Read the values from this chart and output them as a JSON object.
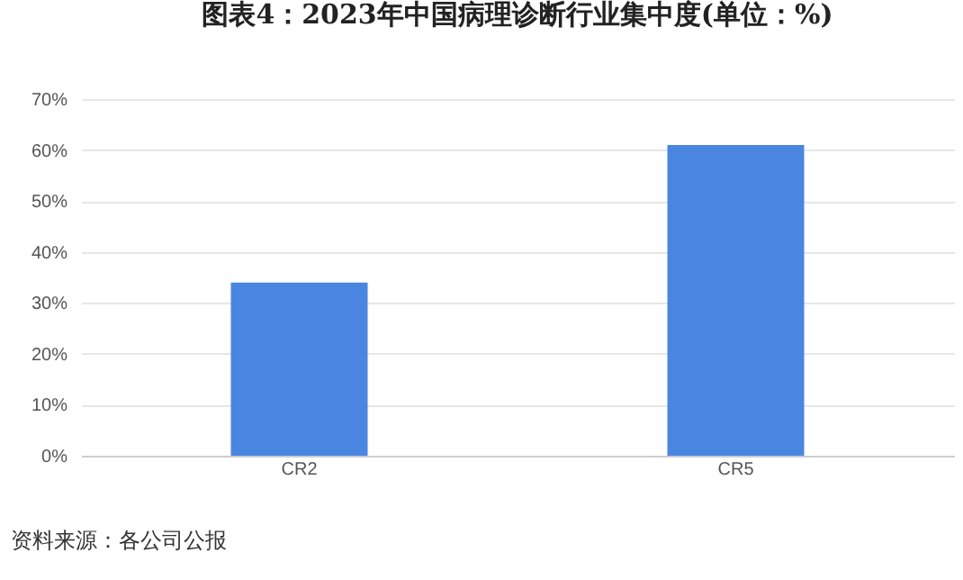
{
  "chart_data": {
    "type": "bar",
    "title": "图表4：2023年中国病理诊断行业集中度(单位：%)",
    "categories": [
      "CR2",
      "CR5"
    ],
    "values": [
      34,
      61
    ],
    "color": "#4a86e0",
    "ylim": [
      0,
      70
    ],
    "yticks": [
      {
        "value": 0,
        "label": "0%"
      },
      {
        "value": 10,
        "label": "10%"
      },
      {
        "value": 20,
        "label": "20%"
      },
      {
        "value": 30,
        "label": "30%"
      },
      {
        "value": 40,
        "label": "40%"
      },
      {
        "value": 50,
        "label": "50%"
      },
      {
        "value": 60,
        "label": "60%"
      },
      {
        "value": 70,
        "label": "70%"
      }
    ],
    "grid": "y",
    "annotations": [
      "资料来源：各公司公报"
    ]
  }
}
